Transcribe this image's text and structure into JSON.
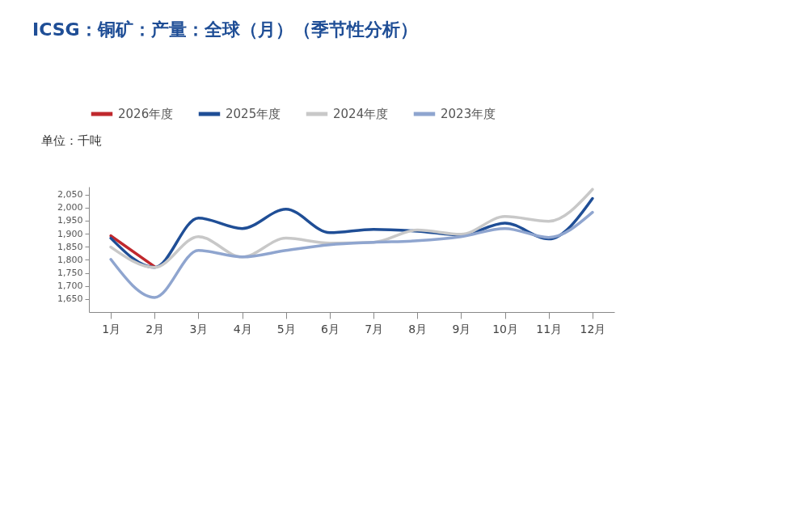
{
  "chart_data": {
    "type": "line",
    "title": "ICSG：铜矿：产量：全球（月）（季节性分析）",
    "ylabel": "单位：千吨",
    "categories": [
      "1月",
      "2月",
      "3月",
      "4月",
      "5月",
      "6月",
      "7月",
      "8月",
      "9月",
      "10月",
      "11月",
      "12月"
    ],
    "series": [
      {
        "name": "2026年度",
        "color": "#c0282d",
        "values": [
          1892,
          1774,
          null,
          null,
          null,
          null,
          null,
          null,
          null,
          null,
          null,
          null
        ]
      },
      {
        "name": "2025年度",
        "color": "#1f4e96",
        "values": [
          1883,
          1771,
          1960,
          1920,
          1994,
          1904,
          1917,
          1910,
          1895,
          1941,
          1880,
          2035
        ]
      },
      {
        "name": "2024年度",
        "color": "#c8c8c8",
        "values": [
          1849,
          1771,
          1889,
          1811,
          1883,
          1864,
          1867,
          1914,
          1898,
          1966,
          1948,
          2070
        ]
      },
      {
        "name": "2023年度",
        "color": "#8fa5cf",
        "values": [
          1802,
          1656,
          1836,
          1811,
          1836,
          1858,
          1867,
          1873,
          1889,
          1920,
          1886,
          1982
        ]
      }
    ],
    "ylim": [
      1600,
      2080
    ],
    "yticks": [
      {
        "value": 1650,
        "label": "1,650"
      },
      {
        "value": 1700,
        "label": "1,700"
      },
      {
        "value": 1750,
        "label": "1,750"
      },
      {
        "value": 1800,
        "label": "1,800"
      },
      {
        "value": 1850,
        "label": "1,850"
      },
      {
        "value": 1900,
        "label": "1,900"
      },
      {
        "value": 1950,
        "label": "1,950"
      },
      {
        "value": 2000,
        "label": "2,000"
      },
      {
        "value": 2050,
        "label": "2,050"
      }
    ],
    "grid": false,
    "legend": "top",
    "marker": "none",
    "line_style": "solid"
  }
}
